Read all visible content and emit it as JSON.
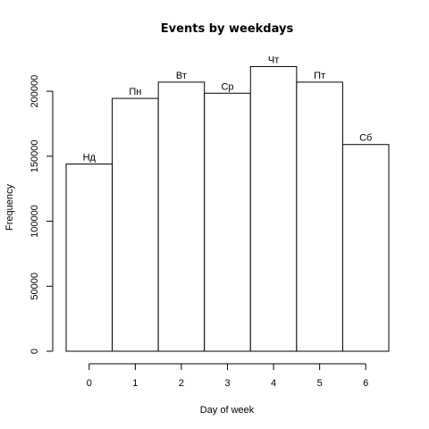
{
  "chart_data": {
    "type": "bar",
    "title": "Events by weekdays",
    "xlabel": "Day of week",
    "ylabel": "Frequency",
    "x": [
      0,
      1,
      2,
      3,
      4,
      5,
      6
    ],
    "bar_labels": [
      "Нд",
      "Пн",
      "Вт",
      "Ср",
      "Чт",
      "Пт",
      "Сб"
    ],
    "values": [
      144000,
      194500,
      207000,
      198500,
      219000,
      207000,
      159000
    ],
    "xlim": [
      -0.5,
      6.5
    ],
    "ylim": [
      0,
      220000
    ],
    "yticks": [
      0,
      50000,
      100000,
      150000,
      200000
    ],
    "ytick_labels": [
      "0",
      "50000",
      "100000",
      "150000",
      "200000"
    ],
    "xtick_labels": [
      "0",
      "1",
      "2",
      "3",
      "4",
      "5",
      "6"
    ],
    "grid": false,
    "legend": "none",
    "colors": {
      "bar_fill": "#ffffff",
      "bar_stroke": "#000000",
      "text": "#000000"
    }
  }
}
